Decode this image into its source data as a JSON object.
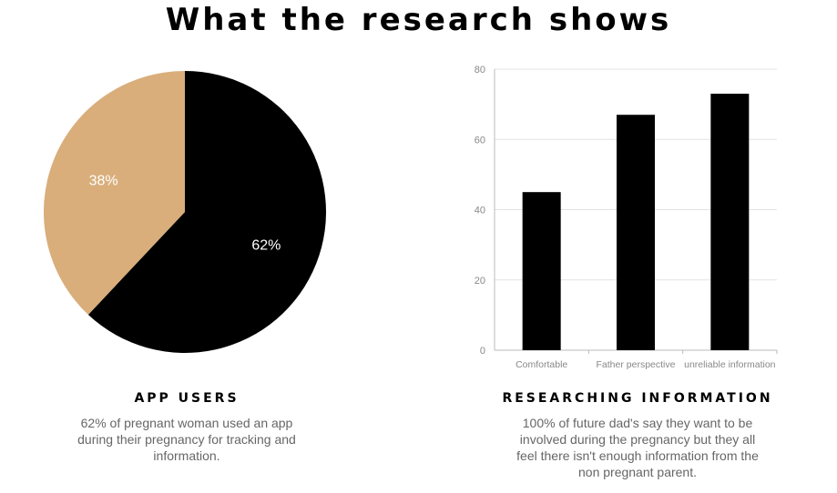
{
  "title": "What the research shows",
  "chart_data": [
    {
      "type": "pie",
      "slices": [
        {
          "label": "62%",
          "value": 62,
          "color": "#000000"
        },
        {
          "label": "38%",
          "value": 38,
          "color": "#d9ae7b"
        }
      ]
    },
    {
      "type": "bar",
      "categories": [
        "Comfortable",
        "Father perspective",
        "unreliable information"
      ],
      "values": [
        45,
        67,
        73
      ],
      "ylim": [
        0,
        80
      ],
      "yticks": [
        "0",
        "20",
        "40",
        "60",
        "80"
      ],
      "grid": true,
      "color": "#000000"
    }
  ],
  "sections": [
    {
      "heading": "APP USERS",
      "text": "62% of pregnant woman used an app during their pregnancy for tracking and information."
    },
    {
      "heading": "RESEARCHING INFORMATION",
      "text": "100% of future dad's say they want to be involved during the pregnancy but they all feel there isn't enough information from the non pregnant parent."
    }
  ]
}
